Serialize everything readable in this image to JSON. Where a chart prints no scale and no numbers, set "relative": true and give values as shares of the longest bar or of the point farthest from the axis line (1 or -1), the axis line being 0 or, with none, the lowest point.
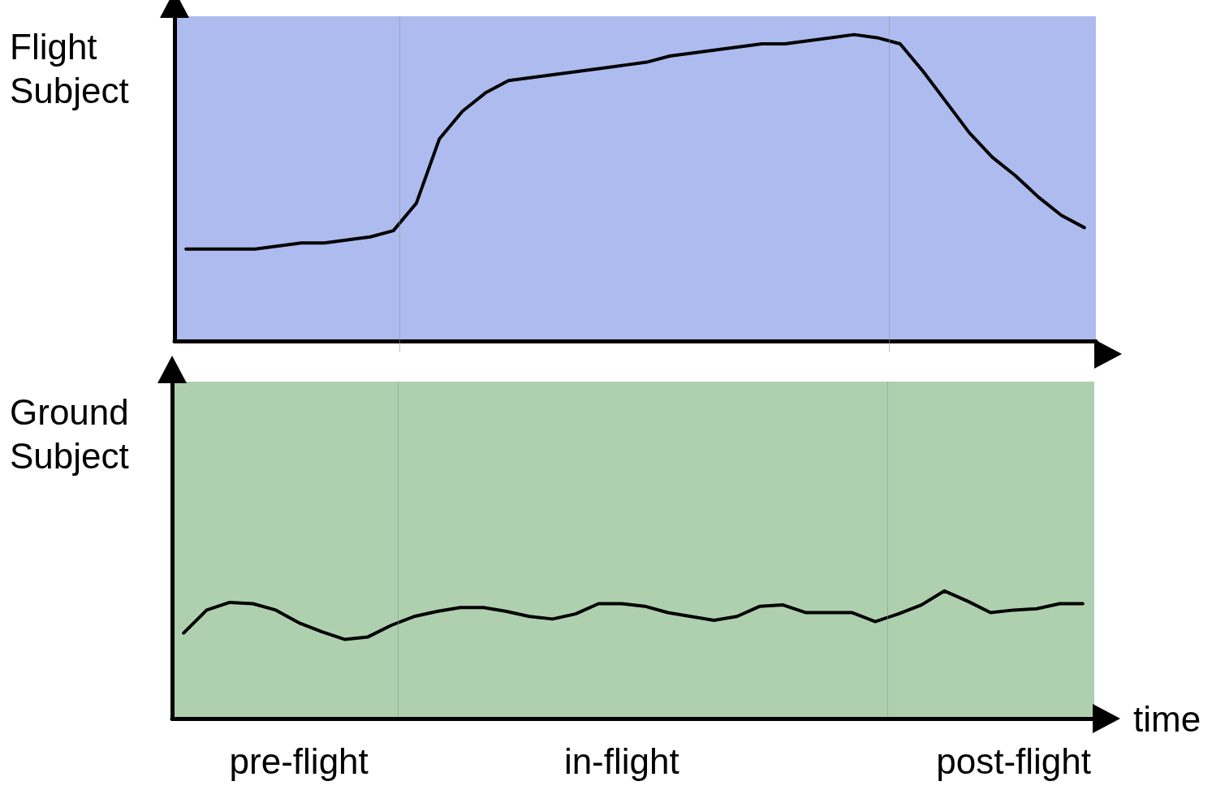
{
  "chart_data": [
    {
      "type": "line",
      "ylabel": "Flight\nSubject",
      "relative": true,
      "marker": "none",
      "line_style": "solid",
      "categories": [
        null,
        null,
        null,
        null,
        null,
        null,
        null,
        null,
        null,
        null,
        null,
        null,
        null,
        null,
        null,
        null,
        null,
        null,
        null,
        null,
        null,
        null,
        null,
        null,
        null,
        null,
        null,
        null,
        null,
        null,
        null,
        null,
        null,
        null,
        null,
        null,
        null,
        null,
        null,
        null
      ],
      "series": [
        {
          "color": "#000000",
          "values": [
            0.3,
            0.3,
            0.3,
            0.3,
            0.31,
            0.32,
            0.32,
            0.33,
            0.34,
            0.36,
            0.45,
            0.66,
            0.75,
            0.81,
            0.85,
            0.86,
            0.87,
            0.88,
            0.89,
            0.9,
            0.91,
            0.93,
            0.94,
            0.95,
            0.96,
            0.97,
            0.97,
            0.98,
            0.99,
            1.0,
            0.99,
            0.97,
            0.88,
            0.78,
            0.68,
            0.6,
            0.54,
            0.47,
            0.41,
            0.37
          ]
        }
      ]
    },
    {
      "type": "line",
      "ylabel": "Ground\nSubject",
      "xlabel": "time",
      "relative": true,
      "marker": "none",
      "line_style": "solid",
      "categories": [
        null,
        null,
        null,
        null,
        null,
        "pre-flight",
        null,
        null,
        null,
        null,
        null,
        null,
        null,
        null,
        null,
        null,
        null,
        null,
        null,
        "in-flight",
        null,
        null,
        null,
        null,
        null,
        null,
        null,
        null,
        null,
        null,
        null,
        null,
        null,
        null,
        null,
        null,
        "post-flight",
        null,
        null,
        null
      ],
      "series": [
        {
          "color": "#000000",
          "values": [
            0.67,
            0.85,
            0.91,
            0.9,
            0.85,
            0.75,
            0.68,
            0.62,
            0.64,
            0.73,
            0.8,
            0.84,
            0.87,
            0.87,
            0.84,
            0.8,
            0.78,
            0.82,
            0.9,
            0.9,
            0.88,
            0.83,
            0.8,
            0.77,
            0.8,
            0.88,
            0.89,
            0.83,
            0.83,
            0.83,
            0.76,
            0.82,
            0.89,
            1.0,
            0.92,
            0.83,
            0.85,
            0.86,
            0.9,
            0.9
          ]
        }
      ]
    }
  ]
}
